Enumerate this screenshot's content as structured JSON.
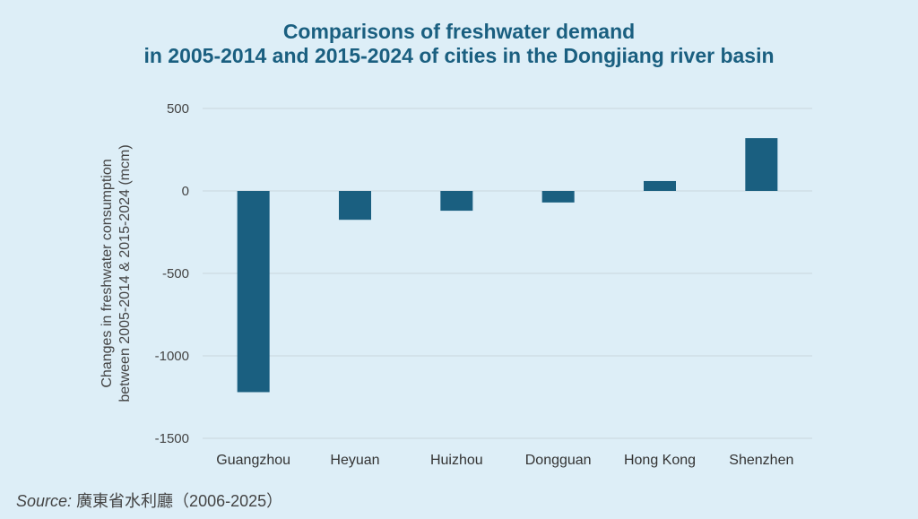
{
  "chart_data": {
    "type": "bar",
    "title_line1": "Comparisons of freshwater demand",
    "title_line2": "in 2005-2014 and 2015-2024 of cities in the Dongjiang river basin",
    "ylabel_line1": "Changes in freshwater consumption",
    "ylabel_line2": "between 2005-2014 & 2015-2024 (mcm)",
    "xlabel": "",
    "categories": [
      "Guangzhou",
      "Heyuan",
      "Huizhou",
      "Dongguan",
      "Hong Kong",
      "Shenzhen"
    ],
    "values": [
      -1220,
      -175,
      -120,
      -70,
      60,
      320
    ],
    "ylim": [
      -1500,
      500
    ],
    "yticks": [
      500,
      0,
      -500,
      -1000,
      -1500
    ],
    "grid": true,
    "bar_color": "#1a5f80"
  },
  "source": {
    "label": "Source:",
    "text": "廣東省水利廳（2006-2025）"
  }
}
